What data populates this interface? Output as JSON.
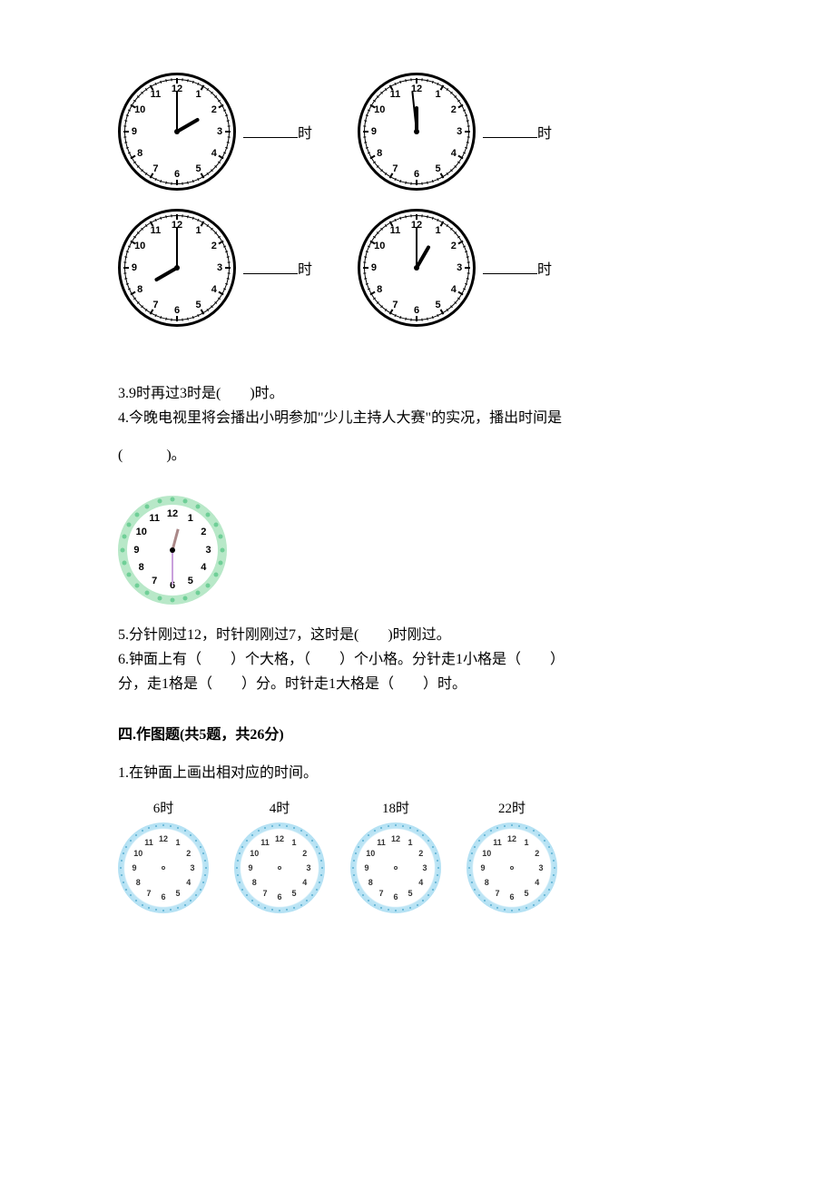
{
  "clocks_bw": {
    "size": 130,
    "number_radius_pct": 38,
    "tick_major_len": 6,
    "tick_minor_len": 3,
    "hour_hand_len": 28,
    "minute_hand_len": 45,
    "items": [
      {
        "hour": 2,
        "minute": 0,
        "label_suffix": "时"
      },
      {
        "hour": 12,
        "minute": 0,
        "label_suffix": "时",
        "minute_offset_deg": -6
      },
      {
        "hour": 8,
        "minute": 0,
        "label_suffix": "时"
      },
      {
        "hour": 1,
        "minute": 0,
        "label_suffix": "时"
      }
    ]
  },
  "questions": {
    "q3": "3.9时再过3时是(　　)时。",
    "q4_line1": "4.今晚电视里将会播出小明参加\"少儿主持人大赛\"的实况，播出时间是",
    "q4_line2": "(　　　)。",
    "q5": "5.分针刚过12，时针刚刚过7，这时是(　　)时刚过。",
    "q6_line1": "6.钟面上有（　　）个大格，（　　）个小格。分针走1小格是（　　）",
    "q6_line2": "分，走1格是（　　）分。时针走1大格是（　　）时。"
  },
  "clock_green": {
    "size": 120,
    "ring_color": "#b8e8c8",
    "dot_color": "#6fcf97",
    "number_radius_pct": 33,
    "hour": 12,
    "minute": 30,
    "hour_hand_color": "#a88",
    "minute_hand_color": "#c9a0dc",
    "hour_hand_len": 24,
    "minute_hand_len": 38
  },
  "section4": {
    "header": "四.作图题(共5题，共26分)",
    "q1": "1.在钟面上画出相对应的时间。",
    "clocks": [
      {
        "label": "6时"
      },
      {
        "label": "4时"
      },
      {
        "label": "18时"
      },
      {
        "label": "22时"
      }
    ],
    "clock_size": 100,
    "number_radius_pct": 32,
    "ring_outer": "#8dd0ec",
    "ring_inner": "#bde5f5"
  }
}
